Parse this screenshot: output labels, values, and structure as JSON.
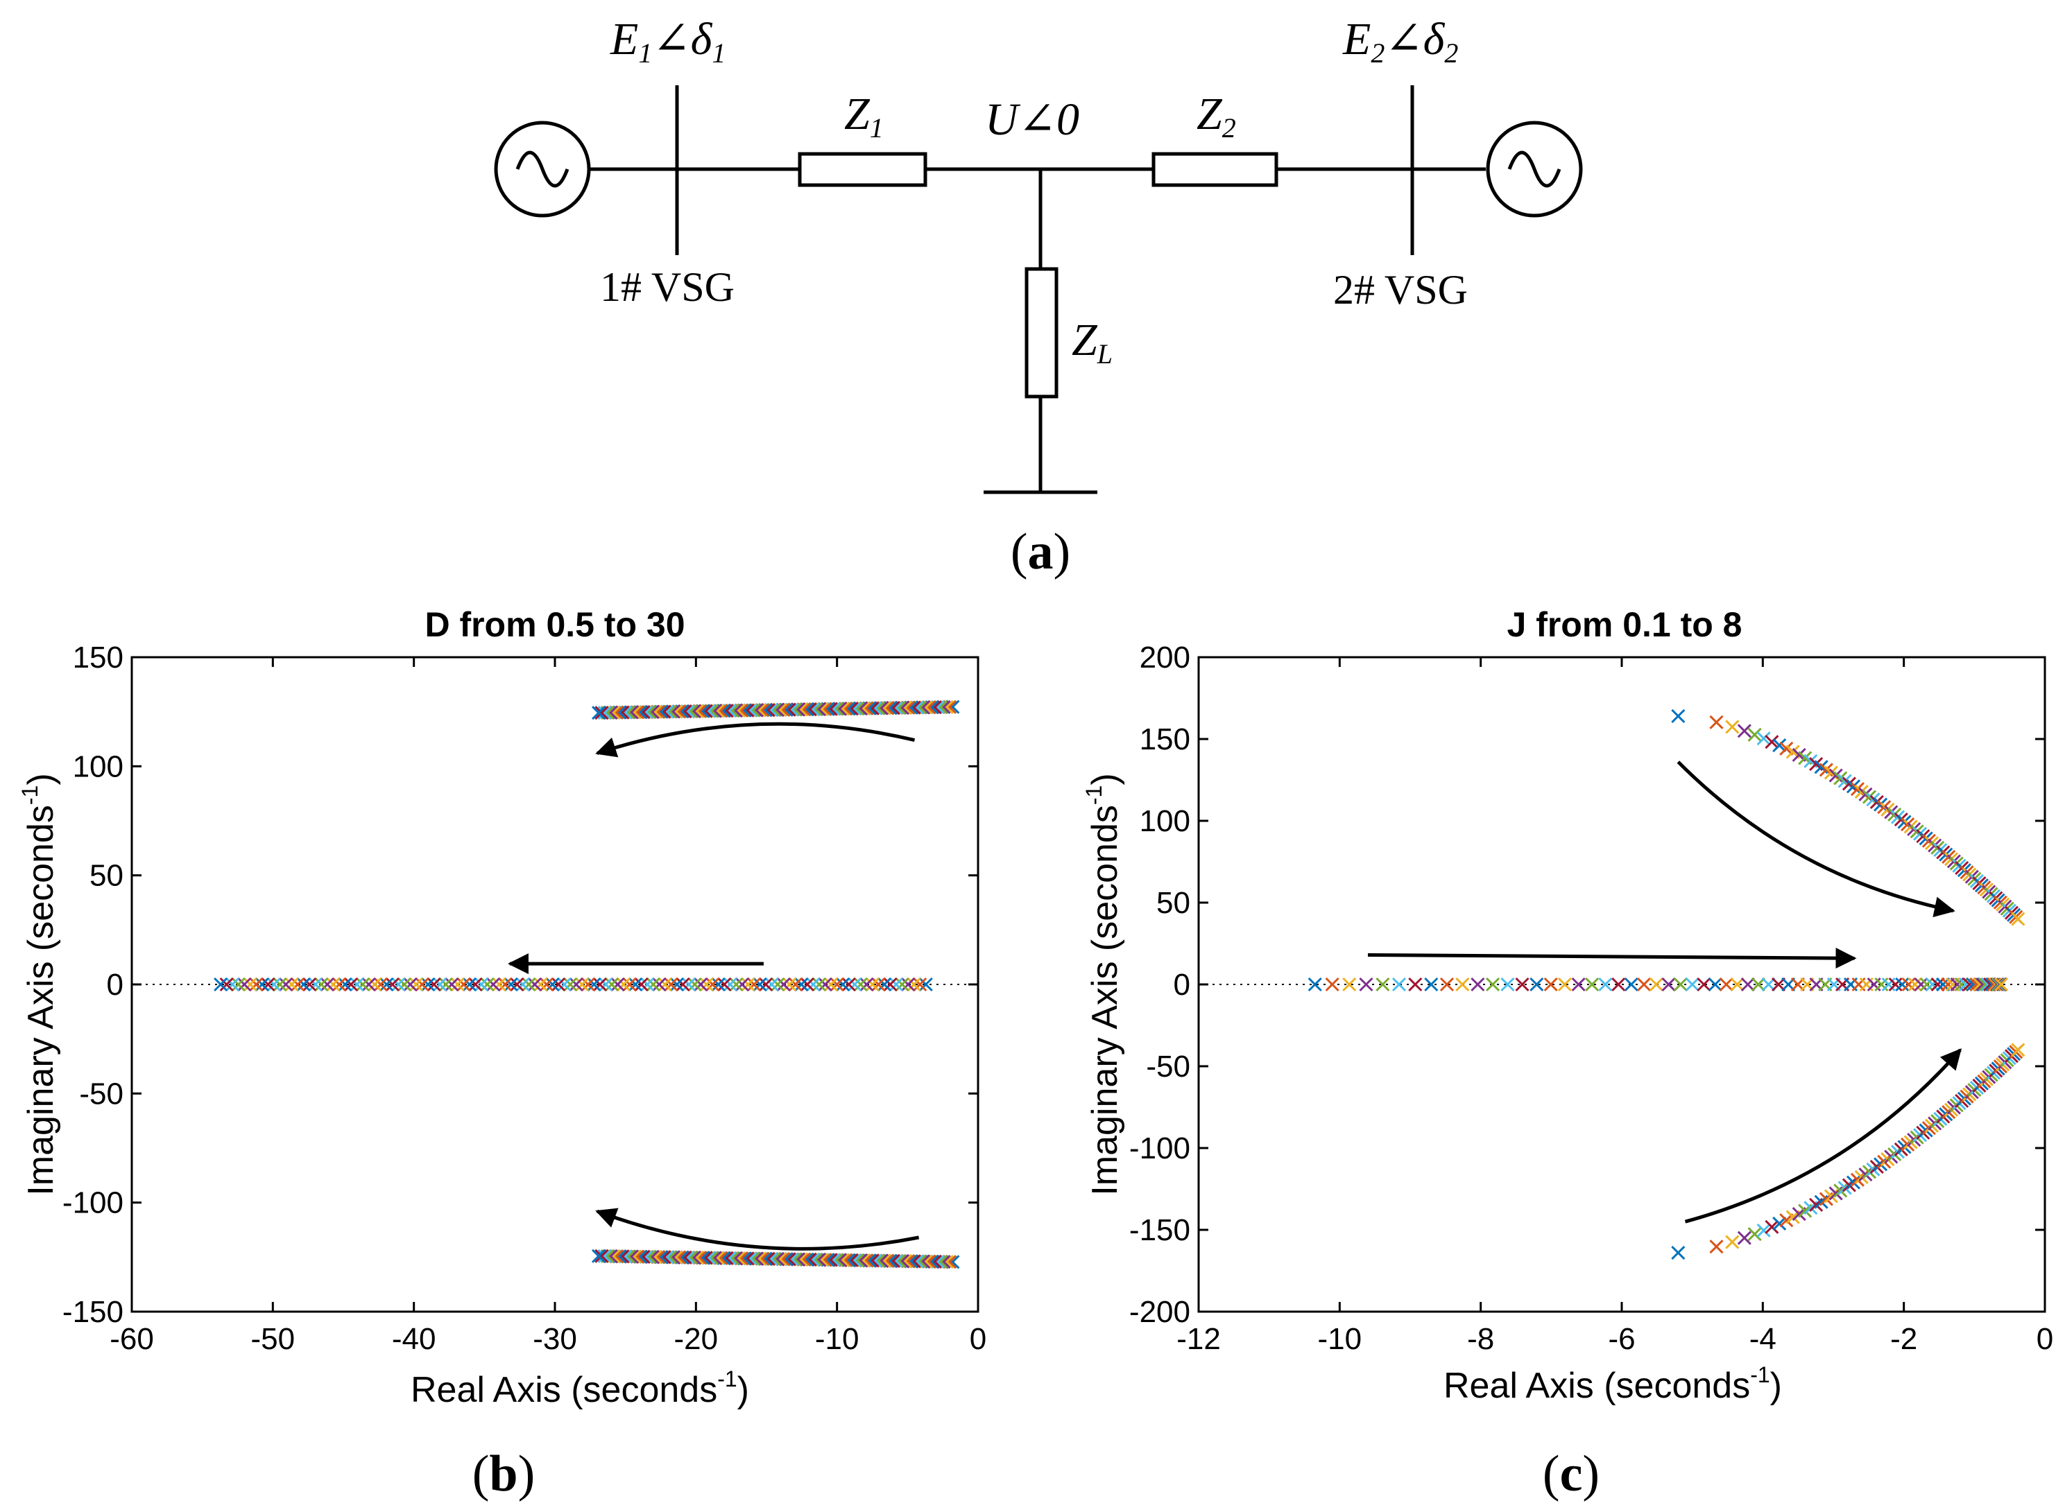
{
  "circuit": {
    "e1": {
      "main": "E",
      "sub1": "1",
      "mid": "∠δ",
      "sub2": "1"
    },
    "e2": {
      "main": "E",
      "sub1": "2",
      "mid": "∠δ",
      "sub2": "2"
    },
    "z1": {
      "main": "Z",
      "sub": "1"
    },
    "z2": {
      "main": "Z",
      "sub": "2"
    },
    "zl": {
      "main": "Z",
      "sub": "L"
    },
    "u": "U∠0",
    "vsg1": "1# VSG",
    "vsg2": "2# VSG",
    "caption": {
      "open": "(",
      "letter": "a",
      "close": ")"
    }
  },
  "plot_b": {
    "caption": {
      "open": "(",
      "letter": "b",
      "close": ")"
    },
    "xlabel_main": "Real Axis (seconds",
    "xlabel_sup": "-1",
    "xlabel_close": ")",
    "ylabel_main": "Imaginary Axis (seconds",
    "ylabel_sup": "-1",
    "ylabel_close": ")"
  },
  "plot_c": {
    "caption": {
      "open": "(",
      "letter": "c",
      "close": ")"
    },
    "xlabel_main": "Real Axis (seconds",
    "xlabel_sup": "-1",
    "xlabel_close": ")",
    "ylabel_main": "Imaginary Axis (seconds",
    "ylabel_sup": "-1",
    "ylabel_close": ")"
  },
  "colors": [
    "#0072BD",
    "#D95319",
    "#EDB120",
    "#7E2F8E",
    "#77AC30",
    "#4DBEEE",
    "#A2142F"
  ],
  "chart_data": [
    {
      "type": "scatter",
      "title": "D from 0.5 to 30",
      "xlabel": "Real Axis (seconds-1)",
      "ylabel": "Imaginary Axis (seconds-1)",
      "xlim": [
        -60,
        0
      ],
      "ylim": [
        -150,
        150
      ],
      "xticks": [
        -60,
        -50,
        -40,
        -30,
        -20,
        -10,
        0
      ],
      "yticks": [
        -150,
        -100,
        -50,
        0,
        50,
        100,
        150
      ],
      "marker": "x",
      "series": [
        {
          "x": [
            -1.8,
            -26.9
          ],
          "y": [
            127.2,
            124.5
          ],
          "count": 120
        },
        {
          "x": [
            -1.8,
            -26.9
          ],
          "y": [
            -127.2,
            -124.5
          ],
          "count": 120
        },
        {
          "x": [
            -3.7,
            -53.7
          ],
          "y": [
            0,
            0
          ],
          "count": 120
        }
      ],
      "arrows": [
        {
          "from": [
            -4.5,
            112
          ],
          "to": [
            -27,
            106
          ],
          "curve": 14
        },
        {
          "from": [
            -15.2,
            9.5
          ],
          "to": [
            -33.2,
            9.5
          ],
          "curve": 0
        },
        {
          "from": [
            -4.2,
            -116
          ],
          "to": [
            -27,
            -104
          ],
          "curve": -14
        }
      ]
    },
    {
      "type": "scatter",
      "title": "J from 0.1 to 8",
      "xlabel": "Real Axis (seconds-1)",
      "ylabel": "Imaginary Axis (seconds-1)",
      "xlim": [
        -12,
        0
      ],
      "ylim": [
        -200,
        200
      ],
      "xticks": [
        -12,
        -10,
        -8,
        -6,
        -4,
        -2,
        0
      ],
      "yticks": [
        -200,
        -150,
        -100,
        -50,
        0,
        50,
        100,
        150,
        200
      ],
      "marker": "x",
      "series": [
        {
          "name": "complex-upper",
          "p0": [
            -5.2,
            164
          ],
          "p1": [
            -0.38,
            40
          ],
          "count": 80,
          "shape": 0.5
        },
        {
          "name": "complex-lower",
          "p0": [
            -5.2,
            -164
          ],
          "p1": [
            -0.38,
            -40
          ],
          "count": 80,
          "shape": 0.5
        },
        {
          "name": "real",
          "x": [
            -10.35,
            -0.62
          ],
          "y": [
            0,
            0
          ],
          "count": 80,
          "shape": 2.0
        }
      ],
      "arrows": [
        {
          "from": [
            -5.2,
            136
          ],
          "to": [
            -1.3,
            45
          ],
          "curve": 15
        },
        {
          "from": [
            -9.6,
            18
          ],
          "to": [
            -2.7,
            16
          ],
          "curve": 0
        },
        {
          "from": [
            -5.1,
            -145
          ],
          "to": [
            -1.2,
            -40
          ],
          "curve": 15
        }
      ]
    }
  ]
}
